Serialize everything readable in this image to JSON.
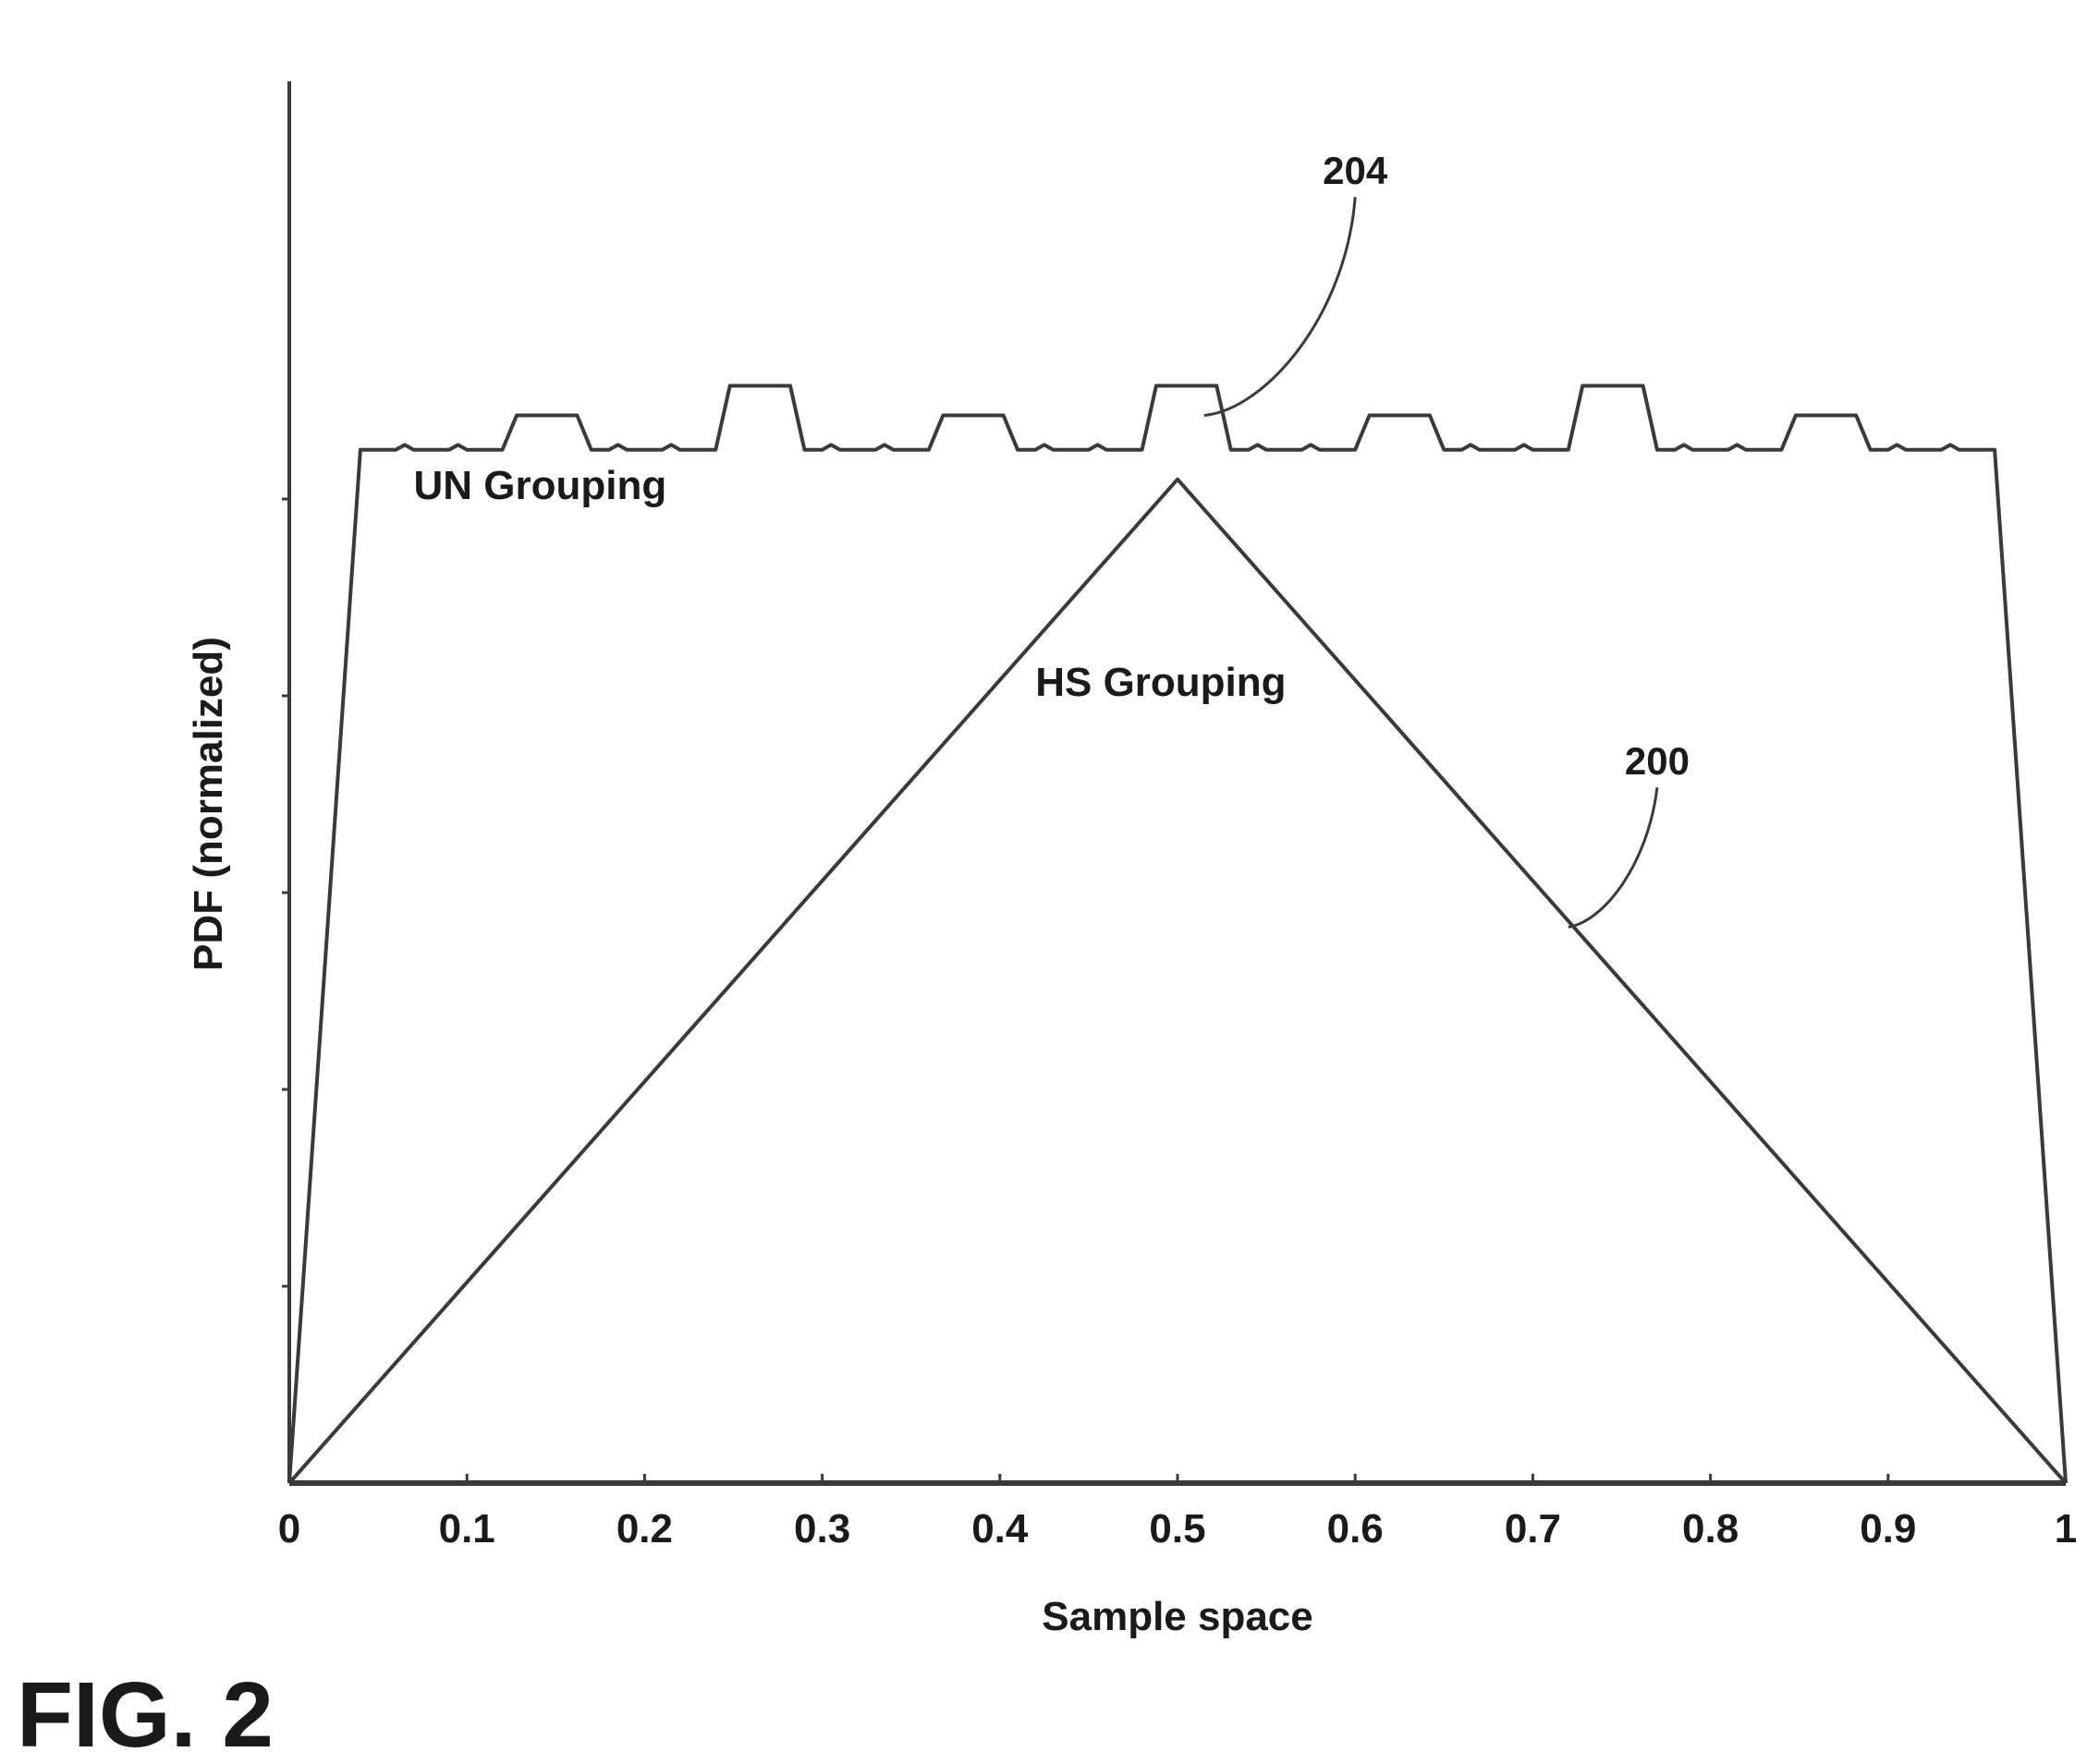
{
  "figure": {
    "caption": "FIG. 2"
  },
  "chart_data": {
    "type": "line",
    "title": "",
    "xlabel": "Sample space",
    "ylabel": "PDF (normalized)",
    "xlim": [
      0,
      1
    ],
    "ylim": [
      0,
      1.2
    ],
    "x_ticks": [
      0,
      0.1,
      0.2,
      0.3,
      0.4,
      0.5,
      0.6,
      0.7,
      0.8,
      0.9,
      1
    ],
    "x_tick_labels": [
      "0",
      "0.1",
      "0.2",
      "0.3",
      "0.4",
      "0.5",
      "0.6",
      "0.7",
      "0.8",
      "0.9",
      "1"
    ],
    "y_ticks": [
      0.2,
      0.4,
      0.6,
      0.8,
      1.0
    ],
    "grid": false,
    "colors": {
      "line": "#3a3a3a",
      "text": "#1a1a1a"
    },
    "series": [
      {
        "name": "UN Grouping",
        "label_at": [
          0.07,
          1.0
        ],
        "x": [
          0,
          0.04,
          0.06,
          0.065,
          0.07,
          0.09,
          0.095,
          0.1,
          0.12,
          0.128,
          0.137,
          0.153,
          0.162,
          0.17,
          0.18,
          0.185,
          0.19,
          0.21,
          0.215,
          0.22,
          0.24,
          0.248,
          0.257,
          0.273,
          0.282,
          0.29,
          0.3,
          0.305,
          0.31,
          0.33,
          0.335,
          0.34,
          0.36,
          0.368,
          0.377,
          0.393,
          0.402,
          0.41,
          0.42,
          0.425,
          0.43,
          0.45,
          0.455,
          0.46,
          0.48,
          0.488,
          0.497,
          0.513,
          0.522,
          0.53,
          0.54,
          0.545,
          0.55,
          0.57,
          0.575,
          0.58,
          0.6,
          0.608,
          0.617,
          0.633,
          0.642,
          0.65,
          0.66,
          0.665,
          0.67,
          0.69,
          0.695,
          0.7,
          0.72,
          0.728,
          0.737,
          0.753,
          0.762,
          0.77,
          0.78,
          0.785,
          0.79,
          0.81,
          0.815,
          0.82,
          0.84,
          0.848,
          0.857,
          0.873,
          0.882,
          0.89,
          0.9,
          0.905,
          0.91,
          0.93,
          0.935,
          0.94,
          0.96,
          1
        ],
        "y": [
          0,
          1.05,
          1.05,
          1.055,
          1.05,
          1.05,
          1.055,
          1.05,
          1.05,
          1.085,
          1.085,
          1.085,
          1.085,
          1.05,
          1.05,
          1.055,
          1.05,
          1.05,
          1.055,
          1.05,
          1.05,
          1.115,
          1.115,
          1.115,
          1.115,
          1.05,
          1.05,
          1.055,
          1.05,
          1.05,
          1.055,
          1.05,
          1.05,
          1.085,
          1.085,
          1.085,
          1.085,
          1.05,
          1.05,
          1.055,
          1.05,
          1.05,
          1.055,
          1.05,
          1.05,
          1.115,
          1.115,
          1.115,
          1.115,
          1.05,
          1.05,
          1.055,
          1.05,
          1.05,
          1.055,
          1.05,
          1.05,
          1.085,
          1.085,
          1.085,
          1.085,
          1.05,
          1.05,
          1.055,
          1.05,
          1.05,
          1.055,
          1.05,
          1.05,
          1.115,
          1.115,
          1.115,
          1.115,
          1.05,
          1.05,
          1.055,
          1.05,
          1.05,
          1.055,
          1.05,
          1.05,
          1.085,
          1.085,
          1.085,
          1.085,
          1.05,
          1.05,
          1.055,
          1.05,
          1.05,
          1.055,
          1.05,
          1.05,
          0
        ]
      },
      {
        "name": "HS Grouping",
        "label_at": [
          0.42,
          0.8
        ],
        "x": [
          0,
          0.5,
          1
        ],
        "y": [
          0,
          1.02,
          0
        ]
      }
    ],
    "annotations": [
      {
        "text": "204",
        "series": "UN Grouping",
        "target": [
          0.515,
          1.085
        ],
        "text_at": [
          0.6,
          1.32
        ]
      },
      {
        "text": "200",
        "series": "HS Grouping",
        "target": [
          0.72,
          0.565
        ],
        "text_at": [
          0.77,
          0.72
        ]
      }
    ]
  }
}
